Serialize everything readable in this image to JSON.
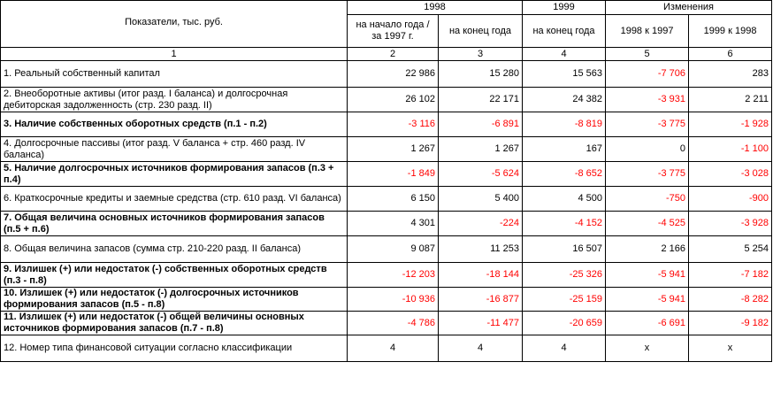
{
  "header": {
    "indicators": "Показатели, тыс. руб.",
    "year1998": "1998",
    "year1999": "1999",
    "changes": "Изменения",
    "col2": "на начало года / за 1997 г.",
    "col3": "на конец года",
    "col4": "на конец года",
    "col5": "1998 к 1997",
    "col6": "1999 к 1998"
  },
  "colnums": [
    "1",
    "2",
    "3",
    "4",
    "5",
    "6"
  ],
  "rows": [
    {
      "label": "1. Реальный собственный капитал",
      "bold": false,
      "values": [
        "22 986",
        "15 280",
        "15 563",
        "-7 706",
        "283"
      ]
    },
    {
      "label": "2. Внеоборотные активы (итог разд. I баланса) и долгосрочная дебиторская задолженность (стр. 230 разд. II)",
      "bold": false,
      "values": [
        "26 102",
        "22 171",
        "24 382",
        "-3 931",
        "2 211"
      ]
    },
    {
      "label": "3. Наличие собственных оборотных средств (п.1 - п.2)",
      "bold": true,
      "values": [
        "-3 116",
        "-6 891",
        "-8 819",
        "-3 775",
        "-1 928"
      ]
    },
    {
      "label": "4. Долгосрочные пассивы (итог разд. V баланса + стр. 460 разд. IV баланса)",
      "bold": false,
      "values": [
        "1 267",
        "1 267",
        "167",
        "0",
        "-1 100"
      ]
    },
    {
      "label": "5. Наличие долгосрочных источников формирования запасов (п.3 + п.4)",
      "bold": true,
      "values": [
        "-1 849",
        "-5 624",
        "-8 652",
        "-3 775",
        "-3 028"
      ]
    },
    {
      "label": "6. Краткосрочные кредиты и заемные средства (стр. 610 разд. VI баланса)",
      "bold": false,
      "values": [
        "6 150",
        "5 400",
        "4 500",
        "-750",
        "-900"
      ]
    },
    {
      "label": "7. Общая величина основных источников формирования запасов (п.5 + п.6)",
      "bold": true,
      "values": [
        "4 301",
        "-224",
        "-4 152",
        "-4 525",
        "-3 928"
      ]
    },
    {
      "label": "8. Общая величина запасов (сумма стр. 210-220 разд. II баланса)",
      "bold": false,
      "values": [
        "9 087",
        "11 253",
        "16 507",
        "2 166",
        "5 254"
      ]
    },
    {
      "label": "9. Излишек (+) или недостаток (-) собственных оборотных средств (п.3 - п.8)",
      "bold": true,
      "values": [
        "-12 203",
        "-18 144",
        "-25 326",
        "-5 941",
        "-7 182"
      ]
    },
    {
      "label": "10. Излишек (+) или недостаток (-) долгосрочных источников формирования запасов (п.5 - п.8)",
      "bold": true,
      "values": [
        "-10 936",
        "-16 877",
        "-25 159",
        "-5 941",
        "-8 282"
      ]
    },
    {
      "label": "11. Излишек (+) или недостаток (-) общей величины основных источников формирования запасов (п.7 - п.8)",
      "bold": true,
      "values": [
        "-4 786",
        "-11 477",
        "-20 659",
        "-6 691",
        "-9 182"
      ]
    },
    {
      "label": "12. Номер типа финансовой ситуации согласно классификации",
      "bold": false,
      "values": [
        "4",
        "4",
        "4",
        "x",
        "x"
      ]
    }
  ]
}
